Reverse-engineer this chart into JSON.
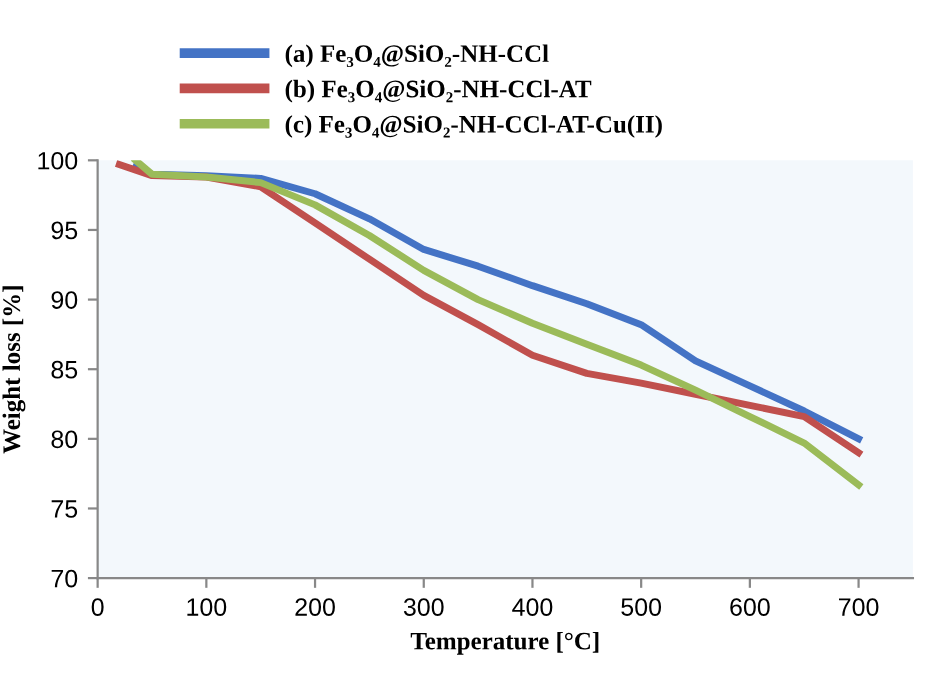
{
  "chart_data": {
    "type": "line",
    "xlabel": "Temperature [°C]",
    "ylabel": "Weight loss [%]",
    "xlim": [
      0,
      750
    ],
    "xticks": [
      0,
      100,
      200,
      300,
      400,
      500,
      600,
      700
    ],
    "ylim": [
      70,
      100
    ],
    "yticks": [
      70,
      75,
      80,
      85,
      90,
      95,
      100
    ],
    "grid": false,
    "legend": "top",
    "marker": "none",
    "line_style": "solid",
    "series": [
      {
        "name": "(a) Fe₃O₄@SiO₂-NH-CCl",
        "color": "#4473c5",
        "x": [
          35,
          50,
          100,
          150,
          200,
          250,
          300,
          350,
          400,
          450,
          500,
          550,
          600,
          650,
          700
        ],
        "values": [
          99.5,
          99.0,
          98.9,
          98.7,
          97.6,
          95.8,
          93.6,
          92.4,
          91.0,
          89.7,
          88.2,
          85.6,
          83.8,
          82.0,
          80.0
        ]
      },
      {
        "name": "(b) Fe₃O₄@SiO₂-NH-CCl-AT",
        "color": "#c0504d",
        "x": [
          20,
          50,
          100,
          150,
          200,
          250,
          300,
          350,
          400,
          450,
          500,
          550,
          600,
          650,
          700
        ],
        "values": [
          99.7,
          98.9,
          98.8,
          98.1,
          95.5,
          92.9,
          90.3,
          88.2,
          86.0,
          84.7,
          84.0,
          83.2,
          82.4,
          81.6,
          79.0
        ]
      },
      {
        "name": "(c) Fe₃O₄@SiO₂-NH-CCl-AT-Cu(II)",
        "color": "#9bbb59",
        "x": [
          35,
          50,
          100,
          150,
          200,
          250,
          300,
          350,
          400,
          450,
          500,
          550,
          600,
          650,
          700
        ],
        "values": [
          100.0,
          99.0,
          98.8,
          98.4,
          96.8,
          94.6,
          92.1,
          90.0,
          88.3,
          86.8,
          85.3,
          83.5,
          81.6,
          79.7,
          76.7
        ]
      }
    ]
  }
}
